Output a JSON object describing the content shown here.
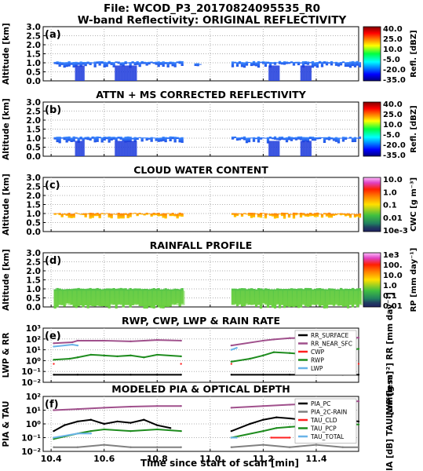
{
  "figure": {
    "title_line1": "File: WCOD_P3_20170824095535_R0",
    "title_line2": "W-band Reflectivity: ORIGINAL REFLECTIVITY",
    "xlabel": "Time since start of scan [min]",
    "xticks": [
      "10.4",
      "10.6",
      "10.8",
      "11.0",
      "11.2",
      "11.4"
    ],
    "xrange": [
      10.37,
      11.56
    ]
  },
  "colors": {
    "magenta": "#a0508c",
    "green": "#1e8c1e",
    "black": "#000000",
    "gray": "#808080",
    "red": "#ff2020",
    "lightblue": "#6ab4e8"
  },
  "chart_data": [
    {
      "id": "a",
      "panel_label": "(a)",
      "type": "heatmap",
      "title": "",
      "ylabel": "Altitude [km]",
      "yticks": [
        "0.0",
        "0.5",
        "1.0",
        "1.5",
        "2.0",
        "2.5",
        "3.0"
      ],
      "ylim": [
        0,
        3
      ],
      "colorbar": {
        "label": "Refl. [dBZ]",
        "ticks": [
          "40.0",
          "25.0",
          "10.0",
          "-5.0",
          "-20.0",
          "-35.0"
        ],
        "scale": "jet"
      },
      "field": "reflectivity_original",
      "cloud_segments": [
        {
          "x": [
            10.41,
            10.89
          ],
          "top_km": 1.1,
          "base_km": 0.8,
          "rain_columns": [
            [
              10.49,
              10.52
            ],
            [
              10.64,
              10.72
            ]
          ]
        },
        {
          "x": [
            10.94,
            10.96
          ],
          "top_km": 1.0,
          "base_km": 0.8
        },
        {
          "x": [
            11.08,
            11.56
          ],
          "top_km": 1.1,
          "base_km": 0.8,
          "rain_columns": [
            [
              11.22,
              11.26
            ],
            [
              11.34,
              11.38
            ]
          ]
        }
      ]
    },
    {
      "id": "b",
      "panel_label": "(b)",
      "type": "heatmap",
      "title": "ATTN + MS CORRECTED REFLECTIVITY",
      "ylabel": "Altitude [km]",
      "yticks": [
        "0.0",
        "0.5",
        "1.0",
        "1.5",
        "2.0",
        "2.5",
        "3.0"
      ],
      "ylim": [
        0,
        3
      ],
      "colorbar": {
        "label": "Refl. [dBZ]",
        "ticks": [
          "40.0",
          "25.0",
          "10.0",
          "-5.0",
          "-20.0",
          "-35.0"
        ],
        "scale": "jet"
      },
      "field": "reflectivity_corrected",
      "cloud_segments": [
        {
          "x": [
            10.41,
            10.89
          ],
          "top_km": 1.1,
          "base_km": 0.8,
          "rain_columns": [
            [
              10.49,
              10.52
            ],
            [
              10.64,
              10.72
            ]
          ]
        },
        {
          "x": [
            11.08,
            11.56
          ],
          "top_km": 1.1,
          "base_km": 0.8,
          "rain_columns": [
            [
              11.22,
              11.26
            ],
            [
              11.34,
              11.38
            ]
          ]
        }
      ]
    },
    {
      "id": "c",
      "panel_label": "(c)",
      "type": "heatmap",
      "title": "CLOUD WATER CONTENT",
      "ylabel": "Altitude [km]",
      "yticks": [
        "0.0",
        "0.5",
        "1.0",
        "1.5",
        "2.0",
        "2.5",
        "3.0"
      ],
      "ylim": [
        0,
        3
      ],
      "colorbar": {
        "label": "CWC [g m⁻³]",
        "ticks": [
          "10.0",
          "1.0",
          "0.1",
          "0.01",
          "10e-3"
        ],
        "scale": "rainbow"
      },
      "field": "cloud_water_content",
      "cloud_segments": [
        {
          "x": [
            10.41,
            10.89
          ],
          "top_km": 1.05,
          "base_km": 0.8
        },
        {
          "x": [
            11.08,
            11.56
          ],
          "top_km": 1.05,
          "base_km": 0.8
        }
      ]
    },
    {
      "id": "d",
      "panel_label": "(d)",
      "type": "heatmap",
      "title": "RAINFALL PROFILE",
      "ylabel": "Altitude [km]",
      "yticks": [
        "0.0",
        "0.5",
        "1.0",
        "1.5",
        "2.0",
        "2.5",
        "3.0"
      ],
      "ylim": [
        0,
        3
      ],
      "colorbar": {
        "label": "RP [mm day⁻¹]",
        "ticks": [
          "1e3",
          "100.",
          "10.0",
          "1.0",
          "0.1",
          "0.01"
        ],
        "scale": "rainbow"
      },
      "field": "rainfall_profile",
      "cloud_segments": [
        {
          "x": [
            10.41,
            10.89
          ],
          "top_km": 1.05,
          "base_km": 0.0
        },
        {
          "x": [
            11.08,
            11.56
          ],
          "top_km": 1.05,
          "base_km": 0.0
        }
      ]
    },
    {
      "id": "e",
      "panel_label": "(e)",
      "type": "line",
      "title": "RWP, CWP, LWP & RAIN RATE",
      "ylabel": "LWP & RR",
      "ylabel_right": "LWP [g m⁻²]  RR [mm day⁻¹]",
      "ylog": true,
      "ylim": [
        0.01,
        1000
      ],
      "yticks": [
        "10⁻²",
        "10⁻¹",
        "10⁰",
        "10¹",
        "10²",
        "10³"
      ],
      "legend_position": "top-right",
      "series": [
        {
          "name": "RR_SURFACE",
          "color": "black",
          "x": [
            10.41,
            10.5,
            10.6,
            10.7,
            10.8,
            10.89,
            11.08,
            11.2,
            11.3,
            11.4,
            11.5,
            11.56
          ],
          "y": [
            0.05,
            0.05,
            0.05,
            0.05,
            0.05,
            0.05,
            0.05,
            0.05,
            0.05,
            0.05,
            0.05,
            0.05
          ]
        },
        {
          "name": "RR_NEAR_SFC",
          "color": "magenta",
          "x": [
            10.41,
            10.48,
            10.5,
            10.6,
            10.7,
            10.8,
            10.89,
            11.08,
            11.2,
            11.24,
            11.3,
            11.4,
            11.5,
            11.56
          ],
          "y": [
            40,
            50,
            70,
            70,
            60,
            80,
            70,
            25,
            70,
            90,
            120,
            130,
            150,
            130
          ]
        },
        {
          "name": "CWP",
          "color": "red",
          "x": [
            10.41,
            10.89,
            11.08,
            11.56
          ],
          "y": [
            0.5,
            0.5,
            0.5,
            0.5
          ]
        },
        {
          "name": "RWP",
          "color": "green",
          "x": [
            10.41,
            10.47,
            10.5,
            10.55,
            10.6,
            10.65,
            10.7,
            10.75,
            10.8,
            10.89,
            11.08,
            11.15,
            11.2,
            11.24,
            11.3,
            11.35,
            11.4,
            11.5,
            11.56
          ],
          "y": [
            1.2,
            1.5,
            2.0,
            3.5,
            3.0,
            2.5,
            3.0,
            2.0,
            3.5,
            2.5,
            0.8,
            1.5,
            3.0,
            6.0,
            5.0,
            4.0,
            8.0,
            10,
            12
          ]
        },
        {
          "name": "LWP",
          "color": "lightblue",
          "x": [
            10.41,
            10.48,
            10.5,
            11.08,
            11.1
          ],
          "y": [
            20,
            30,
            25,
            10,
            15
          ]
        }
      ]
    },
    {
      "id": "f",
      "panel_label": "(f)",
      "type": "line",
      "title": "MODELED PIA & OPTICAL DEPTH",
      "ylabel": "PIA & TAU",
      "ylabel_right": "PIA [dB]  TAU [unitless]",
      "ylog": true,
      "ylim": [
        0.01,
        100
      ],
      "yticks": [
        "10⁻²",
        "10⁻¹",
        "10⁰",
        "10¹",
        "10²"
      ],
      "legend_position": "top-right",
      "series": [
        {
          "name": "PIA_PC",
          "color": "black",
          "x": [
            10.41,
            10.45,
            10.5,
            10.55,
            10.6,
            10.65,
            10.7,
            10.75,
            10.8,
            10.85,
            11.08,
            11.15,
            11.2,
            11.25,
            11.3,
            11.35,
            11.4,
            11.45,
            11.5,
            11.56
          ],
          "y": [
            0.3,
            0.8,
            1.5,
            2.0,
            1.0,
            1.5,
            1.2,
            2.0,
            0.8,
            0.5,
            0.3,
            1.0,
            2.0,
            3.0,
            2.5,
            2.0,
            4.0,
            3.0,
            2.0,
            1.5
          ]
        },
        {
          "name": "PIA_2C-RAIN",
          "color": "gray",
          "x": [
            10.41,
            10.5,
            10.6,
            10.7,
            10.8,
            10.89,
            11.08,
            11.2,
            11.3,
            11.4,
            11.5,
            11.56
          ],
          "y": [
            0.02,
            0.02,
            0.03,
            0.02,
            0.02,
            0.02,
            0.02,
            0.03,
            0.02,
            0.03,
            0.02,
            0.02
          ]
        },
        {
          "name": "TAU_CLD",
          "color": "red",
          "x": [
            11.23,
            11.3
          ],
          "y": [
            0.1,
            0.1
          ]
        },
        {
          "name": "TAU_PCP",
          "color": "green",
          "x": [
            10.41,
            10.5,
            10.55,
            10.6,
            10.7,
            10.8,
            10.89,
            11.08,
            11.2,
            11.25,
            11.3,
            11.4,
            11.5,
            11.56
          ],
          "y": [
            0.08,
            0.2,
            0.3,
            0.4,
            0.3,
            0.4,
            0.3,
            0.1,
            0.3,
            0.5,
            0.6,
            0.8,
            1.0,
            0.9
          ]
        },
        {
          "name": "TAU_TOTAL",
          "color": "lightblue",
          "x": [
            10.41,
            10.5,
            10.55,
            11.08,
            11.1
          ],
          "y": [
            0.1,
            0.2,
            0.2,
            0.1,
            0.1
          ]
        },
        {
          "name": "",
          "color": "magenta",
          "x": [
            10.41,
            10.5,
            10.6,
            10.7,
            10.8,
            10.89,
            11.08,
            11.2,
            11.3,
            11.4,
            11.5,
            11.56
          ],
          "y": [
            10,
            12,
            15,
            18,
            20,
            20,
            15,
            20,
            25,
            30,
            40,
            45
          ]
        }
      ]
    }
  ]
}
